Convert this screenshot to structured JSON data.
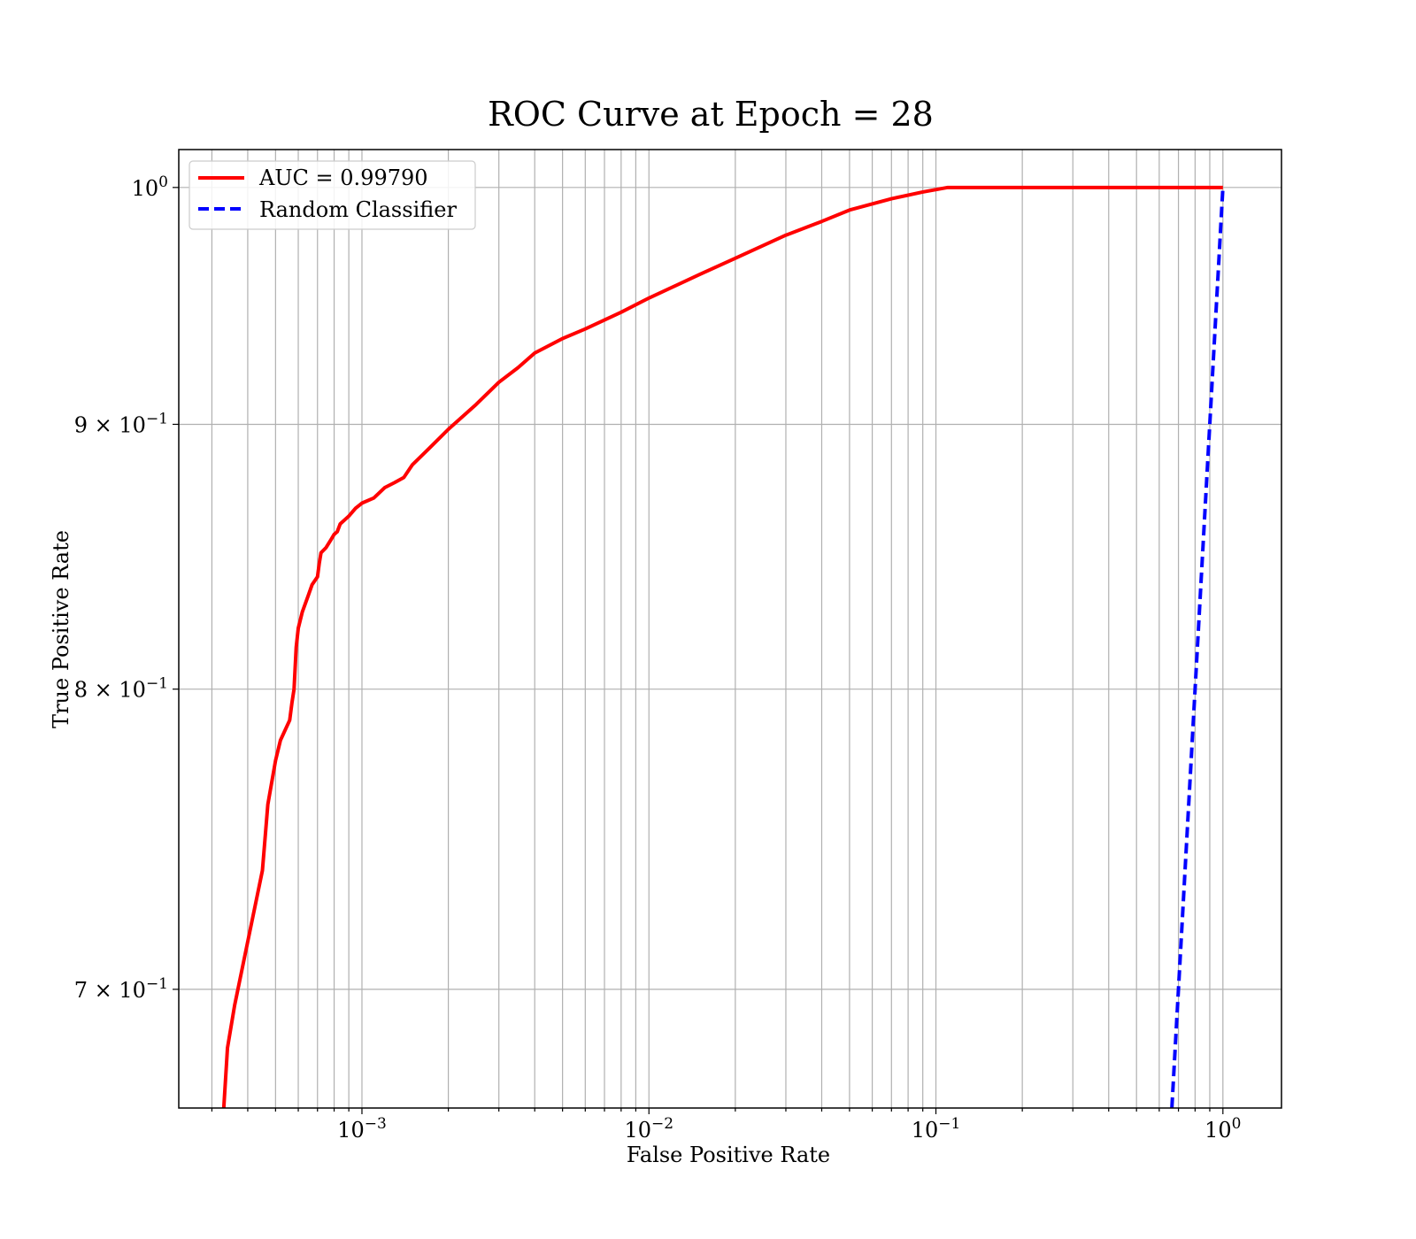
{
  "chart_data": {
    "type": "line",
    "title": "ROC Curve at Epoch = 28",
    "xlabel": "False Positive Rate",
    "ylabel": "True Positive Rate",
    "xscale": "log",
    "yscale": "log",
    "xlim": [
      0.00023,
      1.6
    ],
    "ylim": [
      0.664,
      1.017
    ],
    "grid": "both major and minor",
    "legend_position": "top-left",
    "x_ticks": [
      {
        "value": 0.001,
        "label": "10",
        "exp": "−3"
      },
      {
        "value": 0.01,
        "label": "10",
        "exp": "−2"
      },
      {
        "value": 0.1,
        "label": "10",
        "exp": "−1"
      },
      {
        "value": 1,
        "label": "10",
        "exp": "0"
      }
    ],
    "y_ticks": [
      {
        "value": 1.0,
        "label": "10",
        "exp": "0"
      },
      {
        "value": 0.9,
        "label": "9 × 10",
        "exp": "−1"
      },
      {
        "value": 0.8,
        "label": "8 × 10",
        "exp": "−1"
      },
      {
        "value": 0.7,
        "label": "7 × 10",
        "exp": "−1"
      }
    ],
    "series": [
      {
        "name": "AUC = 0.99790",
        "color": "#ff0000",
        "style": "solid",
        "x": [
          0.00033,
          0.00034,
          0.00036,
          0.0004,
          0.00045,
          0.00047,
          0.0005,
          0.00052,
          0.00056,
          0.00057,
          0.00058,
          0.00059,
          0.0006,
          0.00062,
          0.00065,
          0.00067,
          0.0007,
          0.00071,
          0.00072,
          0.00075,
          0.00078,
          0.0008,
          0.00082,
          0.00084,
          0.0009,
          0.00095,
          0.001,
          0.0011,
          0.0012,
          0.0013,
          0.0014,
          0.0015,
          0.0017,
          0.002,
          0.0025,
          0.003,
          0.0035,
          0.004,
          0.005,
          0.006,
          0.008,
          0.01,
          0.015,
          0.02,
          0.03,
          0.04,
          0.05,
          0.07,
          0.09,
          0.11,
          0.2,
          0.5,
          1.0
        ],
        "y": [
          0.664,
          0.682,
          0.695,
          0.715,
          0.738,
          0.76,
          0.775,
          0.782,
          0.789,
          0.795,
          0.8,
          0.815,
          0.822,
          0.828,
          0.834,
          0.838,
          0.841,
          0.846,
          0.85,
          0.852,
          0.855,
          0.857,
          0.858,
          0.861,
          0.864,
          0.867,
          0.869,
          0.871,
          0.875,
          0.877,
          0.879,
          0.884,
          0.89,
          0.898,
          0.908,
          0.917,
          0.923,
          0.929,
          0.935,
          0.939,
          0.946,
          0.952,
          0.962,
          0.969,
          0.979,
          0.985,
          0.99,
          0.995,
          0.998,
          1.0,
          1.0,
          1.0,
          1.0
        ]
      },
      {
        "name": "Random Classifier",
        "color": "#0000ff",
        "style": "dashed",
        "x": [
          0.664,
          0.7,
          0.8,
          0.9,
          1.0
        ],
        "y": [
          0.664,
          0.7,
          0.8,
          0.9,
          1.0
        ]
      }
    ]
  }
}
